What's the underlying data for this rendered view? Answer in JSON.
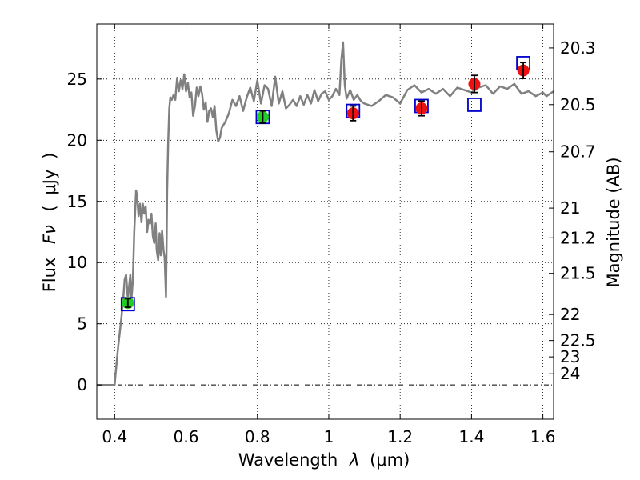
{
  "chart_data": {
    "type": "line",
    "xlabel": "Wavelength",
    "xlabel_symbol": "λ",
    "xlabel_unit": "(μm)",
    "ylabel": "Flux",
    "ylabel_symbol": "Fν",
    "ylabel_unit": "μJy",
    "y2label": "Magnitude (AB)",
    "xlim": [
      0.35,
      1.63
    ],
    "ylim": [
      -2.8,
      29.5
    ],
    "grid": true,
    "x_ticks": [
      {
        "value": 0.4,
        "label": "0.4"
      },
      {
        "value": 0.6,
        "label": "0.6"
      },
      {
        "value": 0.8,
        "label": "0.8"
      },
      {
        "value": 1.0,
        "label": "1"
      },
      {
        "value": 1.2,
        "label": "1.2"
      },
      {
        "value": 1.4,
        "label": "1.4"
      },
      {
        "value": 1.6,
        "label": "1.6"
      }
    ],
    "y_ticks": [
      {
        "value": 0,
        "label": "0"
      },
      {
        "value": 5,
        "label": "5"
      },
      {
        "value": 10,
        "label": "10"
      },
      {
        "value": 15,
        "label": "15"
      },
      {
        "value": 20,
        "label": "20"
      },
      {
        "value": 25,
        "label": "25"
      }
    ],
    "y2_ticks": [
      {
        "value": 20.3,
        "label": "20.3"
      },
      {
        "value": 20.5,
        "label": "20.5"
      },
      {
        "value": 20.7,
        "label": "20.7"
      },
      {
        "value": 21.0,
        "label": "21"
      },
      {
        "value": 21.2,
        "label": "21.2"
      },
      {
        "value": 21.5,
        "label": "21.5"
      },
      {
        "value": 22.0,
        "label": "22"
      },
      {
        "value": 22.5,
        "label": "22.5"
      },
      {
        "value": 23.0,
        "label": "23"
      },
      {
        "value": 24.0,
        "label": "24"
      }
    ],
    "series": [
      {
        "kind": "spectrum",
        "color": "#808080",
        "x": [
          0.35,
          0.4,
          0.403,
          0.41,
          0.418,
          0.424,
          0.428,
          0.432,
          0.437,
          0.441,
          0.444,
          0.447,
          0.451,
          0.455,
          0.46,
          0.463,
          0.467,
          0.471,
          0.475,
          0.479,
          0.483,
          0.487,
          0.491,
          0.495,
          0.499,
          0.503,
          0.507,
          0.511,
          0.515,
          0.518,
          0.522,
          0.526,
          0.529,
          0.533,
          0.537,
          0.54,
          0.544,
          0.547,
          0.55,
          0.553,
          0.556,
          0.56,
          0.565,
          0.57,
          0.575,
          0.58,
          0.585,
          0.59,
          0.595,
          0.6,
          0.605,
          0.61,
          0.615,
          0.62,
          0.625,
          0.63,
          0.635,
          0.64,
          0.645,
          0.65,
          0.655,
          0.66,
          0.665,
          0.67,
          0.675,
          0.68,
          0.685,
          0.69,
          0.695,
          0.7,
          0.71,
          0.72,
          0.73,
          0.74,
          0.75,
          0.76,
          0.77,
          0.78,
          0.79,
          0.8,
          0.81,
          0.82,
          0.83,
          0.84,
          0.85,
          0.86,
          0.87,
          0.88,
          0.89,
          0.9,
          0.91,
          0.92,
          0.93,
          0.94,
          0.95,
          0.96,
          0.97,
          0.98,
          0.99,
          1.0,
          1.01,
          1.02,
          1.03,
          1.035,
          1.04,
          1.045,
          1.05,
          1.06,
          1.07,
          1.08,
          1.09,
          1.1,
          1.12,
          1.14,
          1.16,
          1.18,
          1.2,
          1.22,
          1.24,
          1.26,
          1.28,
          1.3,
          1.32,
          1.34,
          1.36,
          1.38,
          1.4,
          1.42,
          1.44,
          1.46,
          1.48,
          1.5,
          1.52,
          1.54,
          1.56,
          1.58,
          1.6,
          1.61,
          1.63
        ],
        "y": [
          0.0,
          0.0,
          1.0,
          3.2,
          5.2,
          7.0,
          8.6,
          9.0,
          7.0,
          8.2,
          9.0,
          7.0,
          8.6,
          12.5,
          15.9,
          15.4,
          13.8,
          14.8,
          13.3,
          14.8,
          14.0,
          14.6,
          12.5,
          13.5,
          13.2,
          14.0,
          12.2,
          11.6,
          13.2,
          11.0,
          10.2,
          12.4,
          10.6,
          12.6,
          11.0,
          10.4,
          7.2,
          15.8,
          19.8,
          22.6,
          23.5,
          23.3,
          23.7,
          23.3,
          25.1,
          24.0,
          24.9,
          24.2,
          25.4,
          24.0,
          24.7,
          23.5,
          23.9,
          22.0,
          22.8,
          24.3,
          23.6,
          24.4,
          23.8,
          22.5,
          23.1,
          21.5,
          22.4,
          22.6,
          21.9,
          22.8,
          20.8,
          19.9,
          20.2,
          21.0,
          21.5,
          22.2,
          23.3,
          22.8,
          23.6,
          22.4,
          23.5,
          24.3,
          23.2,
          24.9,
          23.0,
          24.5,
          24.2,
          22.8,
          25.2,
          23.0,
          24.0,
          22.6,
          22.9,
          23.3,
          22.8,
          23.6,
          22.9,
          23.7,
          23.0,
          24.1,
          23.2,
          23.8,
          24.0,
          23.3,
          23.6,
          24.2,
          23.7,
          26.5,
          28.0,
          24.5,
          23.4,
          24.1,
          23.3,
          23.7,
          23.2,
          23.0,
          22.8,
          23.2,
          23.7,
          23.5,
          23.0,
          24.1,
          24.5,
          23.9,
          24.2,
          23.8,
          24.2,
          23.6,
          24.3,
          24.1,
          23.9,
          24.3,
          24.5,
          23.8,
          24.4,
          24.2,
          24.6,
          23.8,
          24.0,
          23.6,
          23.9,
          23.6,
          24.0
        ]
      },
      {
        "kind": "model-photometry",
        "marker": "open-square",
        "color": "#0000cc",
        "x": [
          0.437,
          0.815,
          1.068,
          1.26,
          1.408,
          1.545
        ],
        "y": [
          6.6,
          21.9,
          22.4,
          22.8,
          22.9,
          26.3
        ]
      },
      {
        "kind": "observed-photometry-green",
        "marker": "filled-circle",
        "color": "#22cc22",
        "x": [
          0.437,
          0.815
        ],
        "y": [
          6.7,
          21.9
        ],
        "yerr": [
          0.35,
          0.5
        ]
      },
      {
        "kind": "observed-photometry-red",
        "marker": "filled-circle",
        "color": "#ee1111",
        "x": [
          1.068,
          1.26,
          1.408,
          1.545
        ],
        "y": [
          22.2,
          22.6,
          24.6,
          25.7
        ],
        "yerr": [
          0.6,
          0.6,
          0.7,
          0.65
        ]
      }
    ]
  }
}
